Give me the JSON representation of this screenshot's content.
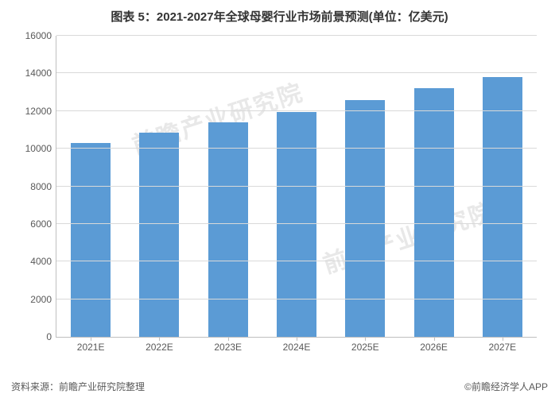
{
  "title": "图表 5：2021-2027年全球母婴行业市场前景预测(单位：亿美元)",
  "title_fontsize": 15,
  "chart": {
    "type": "bar",
    "categories": [
      "2021E",
      "2022E",
      "2023E",
      "2024E",
      "2025E",
      "2026E",
      "2027E"
    ],
    "values": [
      10300,
      10850,
      11400,
      11950,
      12600,
      13200,
      13800
    ],
    "bar_color": "#5b9bd5",
    "ylim": [
      0,
      16000
    ],
    "ytick_step": 2000,
    "yticks": [
      0,
      2000,
      4000,
      6000,
      8000,
      10000,
      12000,
      14000,
      16000
    ],
    "grid_color": "#d9d9d9",
    "axis_color": "#bfbfbf",
    "background_color": "#ffffff",
    "label_fontsize": 12,
    "label_color": "#595959",
    "bar_width_ratio": 0.58
  },
  "footer": {
    "source_left": "资料来源：前瞻产业研究院整理",
    "source_right": "©前瞻经济学人APP"
  },
  "watermark": {
    "text": "前瞻产业研究院",
    "color": "#e8e8e8",
    "fontsize": 30
  }
}
